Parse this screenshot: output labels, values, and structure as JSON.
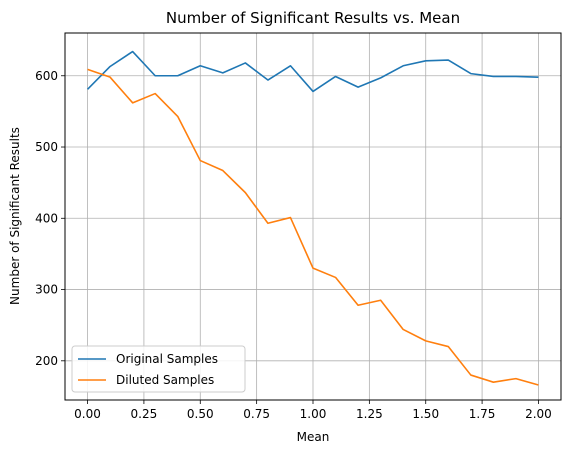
{
  "chart_data": {
    "type": "line",
    "title": "Number of Significant Results vs. Mean",
    "xlabel": "Mean",
    "ylabel": "Number of Significant Results",
    "xlim": [
      -0.1,
      2.1
    ],
    "ylim": [
      145,
      660
    ],
    "xticks": [
      0.0,
      0.25,
      0.5,
      0.75,
      1.0,
      1.25,
      1.5,
      1.75,
      2.0
    ],
    "xtick_labels": [
      "0.00",
      "0.25",
      "0.50",
      "0.75",
      "1.00",
      "1.25",
      "1.50",
      "1.75",
      "2.00"
    ],
    "yticks": [
      200,
      300,
      400,
      500,
      600
    ],
    "ytick_labels": [
      "200",
      "300",
      "400",
      "500",
      "600"
    ],
    "grid": true,
    "legend_position": "lower-left",
    "x": [
      0.0,
      0.1,
      0.2,
      0.3,
      0.4,
      0.5,
      0.6,
      0.7,
      0.8,
      0.9,
      1.0,
      1.1,
      1.2,
      1.3,
      1.4,
      1.5,
      1.6,
      1.7,
      1.8,
      1.9,
      2.0
    ],
    "series": [
      {
        "name": "Original Samples",
        "color": "#1f77b4",
        "values": [
          581,
          613,
          634,
          600,
          600,
          614,
          604,
          618,
          594,
          614,
          578,
          599,
          584,
          597,
          614,
          621,
          622,
          603,
          599,
          599,
          598
        ]
      },
      {
        "name": "Diluted Samples",
        "color": "#ff7f0e",
        "values": [
          609,
          598,
          562,
          575,
          543,
          481,
          467,
          436,
          393,
          401,
          330,
          317,
          278,
          285,
          244,
          228,
          220,
          180,
          170,
          175,
          166
        ]
      }
    ]
  }
}
